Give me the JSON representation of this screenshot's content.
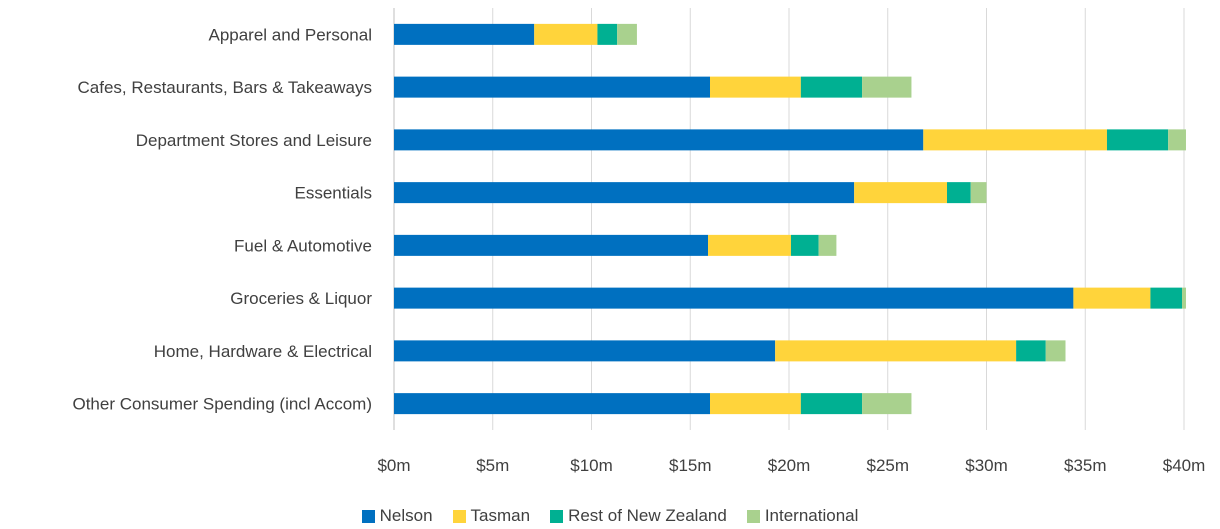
{
  "chart_data": {
    "type": "bar",
    "orientation": "horizontal",
    "stacked": true,
    "title": "",
    "xlabel": "",
    "ylabel": "",
    "categories": [
      "Apparel and Personal",
      "Cafes, Restaurants, Bars & Takeaways",
      "Department Stores and Leisure",
      "Essentials",
      "Fuel & Automotive",
      "Groceries & Liquor",
      "Home, Hardware & Electrical",
      "Other Consumer Spending (incl Accom)"
    ],
    "series": [
      {
        "name": "Nelson",
        "color": "#0070c0",
        "values": [
          7.1,
          16.0,
          26.8,
          23.3,
          15.9,
          34.4,
          19.3,
          16.0
        ]
      },
      {
        "name": "Tasman",
        "color": "#ffd43b",
        "values": [
          3.2,
          4.6,
          9.3,
          4.7,
          4.2,
          3.9,
          12.2,
          4.6
        ]
      },
      {
        "name": "Rest of New Zealand",
        "color": "#00b092",
        "values": [
          1.0,
          3.1,
          3.1,
          1.2,
          1.4,
          1.6,
          1.5,
          3.1
        ]
      },
      {
        "name": "International",
        "color": "#a9d18e",
        "values": [
          1.0,
          2.5,
          0.9,
          0.8,
          0.9,
          0.2,
          1.0,
          2.5
        ]
      }
    ],
    "xlim": [
      0,
      40
    ],
    "ticks": [
      0,
      5,
      10,
      15,
      20,
      25,
      30,
      35,
      40
    ],
    "tick_labels": [
      "$0m",
      "$5m",
      "$10m",
      "$15m",
      "$20m",
      "$25m",
      "$30m",
      "$35m",
      "$40m"
    ],
    "grid": true,
    "legend_position": "bottom"
  }
}
